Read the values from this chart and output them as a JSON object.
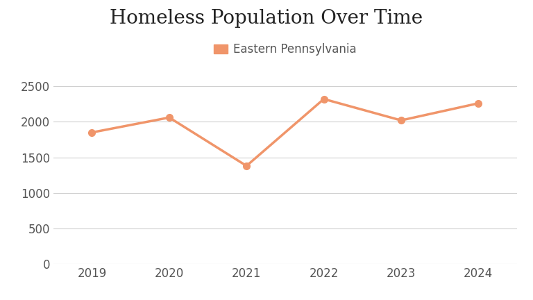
{
  "title": "Homeless Population Over Time",
  "years": [
    2019,
    2020,
    2021,
    2022,
    2023,
    2024
  ],
  "values": [
    1850,
    2060,
    1380,
    2320,
    2020,
    2260
  ],
  "line_color": "#F0956A",
  "marker_color": "#F0956A",
  "legend_label": "Eastern Pennsylvania",
  "ylim": [
    0,
    2700
  ],
  "yticks": [
    0,
    500,
    1000,
    1500,
    2000,
    2500
  ],
  "background_color": "#ffffff",
  "grid_color": "#d0d0d0",
  "title_fontsize": 20,
  "tick_fontsize": 12,
  "legend_fontsize": 12,
  "line_width": 2.5,
  "marker_size": 7
}
